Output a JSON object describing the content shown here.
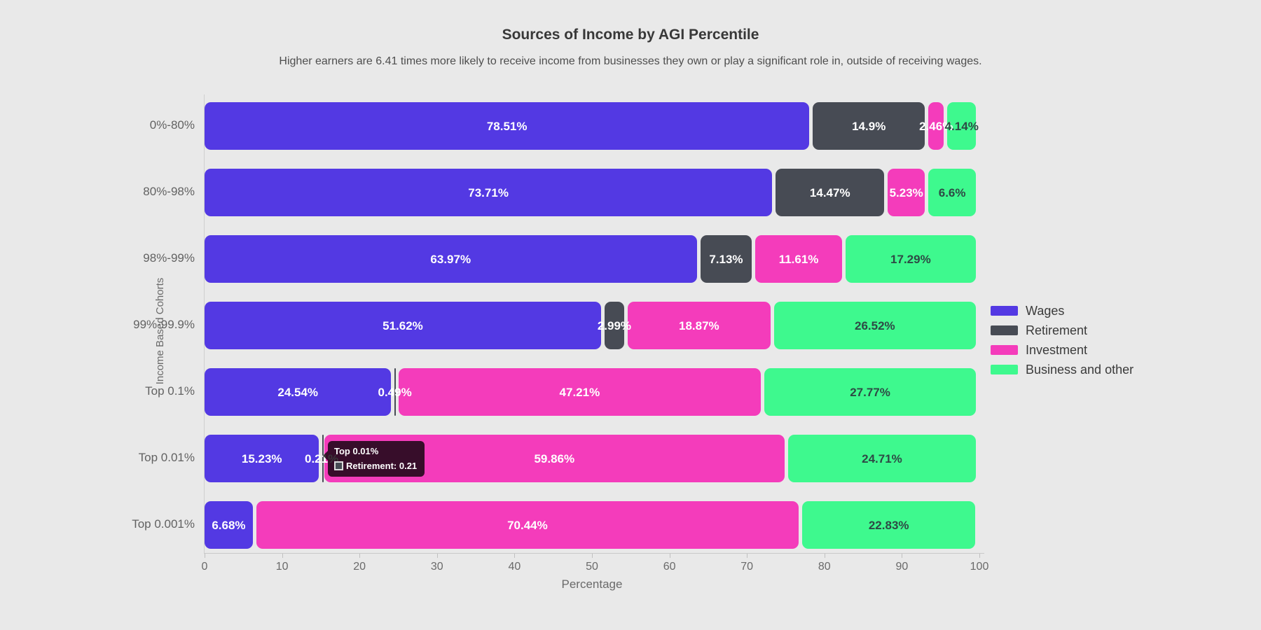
{
  "header": {
    "title": "Sources of Income by AGI Percentile",
    "subtitle": "Higher earners are 6.41 times more likely to receive income from businesses they own or play a significant role in, outside of receiving wages."
  },
  "chart_data": {
    "type": "bar",
    "orientation": "horizontal",
    "stacked": true,
    "title": "Sources of Income by AGI Percentile",
    "xlabel": "Percentage",
    "ylabel": "Income Based Cohorts",
    "xlim": [
      0,
      100
    ],
    "x_ticks": [
      0,
      10,
      20,
      30,
      40,
      50,
      60,
      70,
      80,
      90,
      100
    ],
    "grid": false,
    "legend_position": "right",
    "categories": [
      "0%-80%",
      "80%-98%",
      "98%-99%",
      "99%-99.9%",
      "Top 0.1%",
      "Top 0.01%",
      "Top 0.001%"
    ],
    "series": [
      {
        "name": "Wages",
        "color": "#5339e3",
        "label_color": "#ffffff",
        "values": [
          78.51,
          73.71,
          63.97,
          51.62,
          24.54,
          15.23,
          6.68
        ],
        "labels": [
          "78.51%",
          "73.71%",
          "63.97%",
          "51.62%",
          "24.54%",
          "15.23%",
          "6.68%"
        ]
      },
      {
        "name": "Retirement",
        "color": "#474b54",
        "label_color": "#ffffff",
        "values": [
          14.9,
          14.47,
          7.13,
          2.99,
          0.49,
          0.21,
          0
        ],
        "labels": [
          "14.9%",
          "14.47%",
          "7.13%",
          "2.99%",
          "0.49%",
          "0.21%",
          ""
        ]
      },
      {
        "name": "Investment",
        "color": "#f43cbb",
        "label_color": "#ffffff",
        "values": [
          2.46,
          5.23,
          11.61,
          18.87,
          47.21,
          59.86,
          70.44
        ],
        "labels": [
          "2.46%",
          "5.23%",
          "11.61%",
          "18.87%",
          "47.21%",
          "59.86%",
          "70.44%"
        ]
      },
      {
        "name": "Business and other",
        "color": "#3ef98e",
        "label_color": "#2e4a45",
        "values": [
          4.14,
          6.6,
          17.29,
          26.52,
          27.77,
          24.71,
          22.83
        ],
        "labels": [
          "4.14%",
          "6.6%",
          "17.29%",
          "26.52%",
          "27.77%",
          "24.71%",
          "22.83%"
        ]
      }
    ]
  },
  "tooltip": {
    "title": "Top 0.01%",
    "series": "Retirement",
    "value": "0.21",
    "text": "Retirement: 0.21",
    "swatch_color": "#474b54"
  },
  "colors": {
    "background": "#e9e9e9",
    "axis_text": "#6a6a6a",
    "axis_line": "#c9c9c9",
    "title_text": "#383838",
    "tooltip_bg": "rgba(8,1,6,0.8)"
  }
}
